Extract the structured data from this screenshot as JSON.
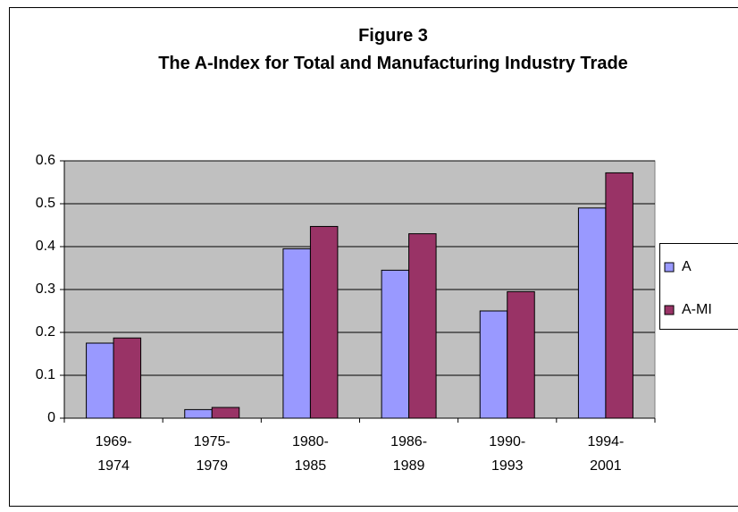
{
  "chart_data": {
    "type": "bar",
    "title": "Figure 3",
    "subtitle": "The A-Index for Total and Manufacturing Industry Trade",
    "categories": [
      "1969-1974",
      "1975-1979",
      "1980-1985",
      "1986-1989",
      "1990-1993",
      "1994-2001"
    ],
    "series": [
      {
        "name": "A",
        "color": "#9999ff",
        "values": [
          0.175,
          0.02,
          0.395,
          0.345,
          0.25,
          0.49
        ]
      },
      {
        "name": "A-MI",
        "color": "#993366",
        "values": [
          0.187,
          0.025,
          0.447,
          0.43,
          0.295,
          0.572
        ]
      }
    ],
    "ylim": [
      0,
      0.6
    ],
    "yticks": [
      0,
      0.1,
      0.2,
      0.3,
      0.4,
      0.5,
      0.6
    ],
    "grid": true,
    "legend": "right"
  }
}
